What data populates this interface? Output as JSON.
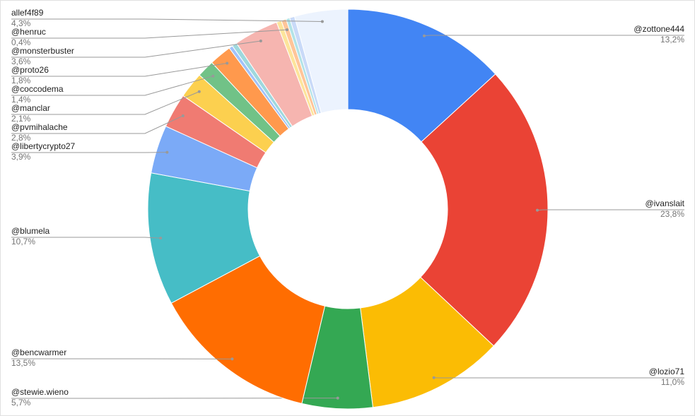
{
  "chart_data": {
    "type": "donut",
    "categories": [
      "@zottone444",
      "@ivanslait",
      "@lozio71",
      "@stewie.wieno",
      "@bencwarmer",
      "@blumela",
      "@libertycrypto27",
      "@pvmihalache",
      "@manclar",
      "@coccodema",
      "@proto26",
      null,
      null,
      "@monsterbuster",
      null,
      "@henruc",
      null,
      null,
      "allef4f89"
    ],
    "values": [
      13.2,
      23.8,
      11.0,
      5.7,
      13.5,
      10.7,
      3.9,
      2.8,
      2.1,
      1.4,
      1.8,
      0.3,
      0.4,
      3.6,
      0.4,
      0.4,
      0.3,
      0.4,
      4.3
    ],
    "value_labels": [
      "13,2%",
      "23,8%",
      "11,0%",
      "5,7%",
      "13,5%",
      "10,7%",
      "3,9%",
      "2,8%",
      "2,1%",
      "1,4%",
      "1,8%",
      null,
      null,
      "3,6%",
      null,
      "0,4%",
      null,
      null,
      "4,3%"
    ],
    "colors": [
      "#4285f4",
      "#ea4335",
      "#fbbc04",
      "#34a853",
      "#ff6d01",
      "#46bdc6",
      "#7baaf7",
      "#f07b72",
      "#fcd04f",
      "#71c287",
      "#ff994d",
      "#a1c2fa",
      "#9fd8dd",
      "#f6b5b0",
      "#fde49b",
      "#ffc599",
      "#b3e3e7",
      "#c9daf8",
      "#ecf3fe"
    ]
  }
}
